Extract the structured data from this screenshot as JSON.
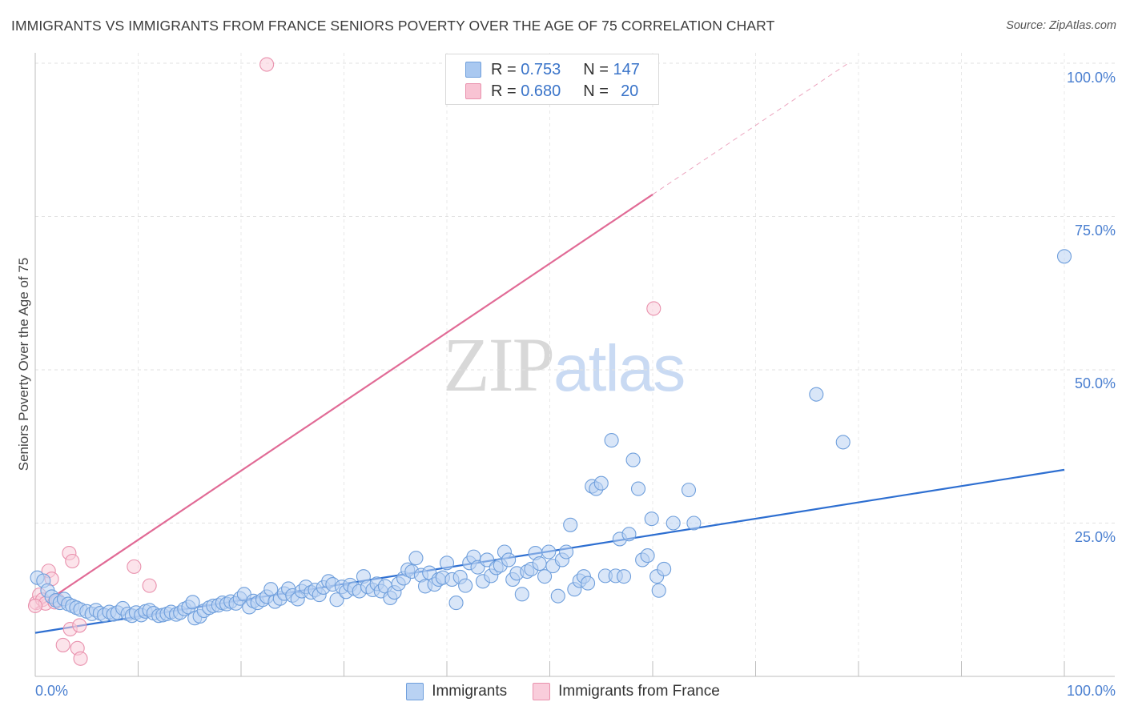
{
  "title": "IMMIGRANTS VS IMMIGRANTS FROM FRANCE SENIORS POVERTY OVER THE AGE OF 75 CORRELATION CHART",
  "source": "Source: ZipAtlas.com",
  "watermark": {
    "zip": "ZIP",
    "atlas": "atlas"
  },
  "legend": {
    "r_label": "R =",
    "n_label": "N =",
    "rows": [
      {
        "r": "0.753",
        "n": "147",
        "color": "#a9c8f0",
        "border": "#6f9fdc"
      },
      {
        "r": "0.680",
        "n": "20",
        "color": "#f8c3d3",
        "border": "#e991ad"
      }
    ]
  },
  "bottom_legend": [
    {
      "label": "Immigrants",
      "color": "#b9d2f3",
      "border": "#6f9fdc"
    },
    {
      "label": "Immigrants from France",
      "color": "#f9cddb",
      "border": "#e991ad"
    }
  ],
  "chart_data": {
    "type": "scatter",
    "title": "IMMIGRANTS VS IMMIGRANTS FROM FRANCE SENIORS POVERTY OVER THE AGE OF 75 CORRELATION CHART",
    "xlabel": "",
    "ylabel": "Seniors Poverty Over the Age of 75",
    "xlim": [
      0,
      100
    ],
    "ylim": [
      0,
      100
    ],
    "x_tick_labels": [
      "0.0%",
      "100.0%"
    ],
    "y_tick_labels": [
      "25.0%",
      "50.0%",
      "75.0%",
      "100.0%"
    ],
    "y_tick_values": [
      25,
      50,
      75,
      100
    ],
    "grid": true,
    "legend_position": "top-center",
    "series": [
      {
        "name": "Immigrants",
        "color": "#6f9fdc",
        "fill": "#b9d2f3",
        "trend": {
          "x0": 0,
          "y0": 7.1,
          "x1": 100,
          "y1": 33.7,
          "color": "#2e6fd1"
        },
        "points": [
          [
            0.2,
            16.1
          ],
          [
            0.8,
            15.6
          ],
          [
            1.2,
            14.0
          ],
          [
            1.6,
            13.0
          ],
          [
            2.0,
            12.4
          ],
          [
            2.4,
            12.0
          ],
          [
            2.8,
            12.6
          ],
          [
            3.2,
            11.8
          ],
          [
            3.6,
            11.5
          ],
          [
            4.0,
            11.2
          ],
          [
            4.4,
            10.9
          ],
          [
            5.0,
            10.6
          ],
          [
            5.5,
            10.2
          ],
          [
            5.9,
            10.8
          ],
          [
            6.3,
            10.3
          ],
          [
            6.7,
            10.0
          ],
          [
            7.2,
            10.5
          ],
          [
            7.6,
            10.1
          ],
          [
            8.0,
            10.4
          ],
          [
            8.5,
            11.1
          ],
          [
            9.0,
            10.2
          ],
          [
            9.4,
            9.9
          ],
          [
            9.8,
            10.4
          ],
          [
            10.3,
            10.0
          ],
          [
            10.7,
            10.6
          ],
          [
            11.1,
            10.8
          ],
          [
            11.5,
            10.3
          ],
          [
            12.0,
            9.9
          ],
          [
            12.4,
            10.0
          ],
          [
            12.8,
            10.2
          ],
          [
            13.2,
            10.5
          ],
          [
            13.7,
            10.1
          ],
          [
            14.1,
            10.4
          ],
          [
            14.5,
            11.0
          ],
          [
            14.9,
            11.3
          ],
          [
            15.3,
            12.1
          ],
          [
            15.5,
            9.5
          ],
          [
            16.0,
            9.8
          ],
          [
            16.4,
            10.7
          ],
          [
            16.9,
            11.2
          ],
          [
            17.3,
            11.5
          ],
          [
            17.8,
            11.6
          ],
          [
            18.2,
            12.0
          ],
          [
            18.6,
            11.8
          ],
          [
            19.0,
            12.2
          ],
          [
            19.5,
            11.9
          ],
          [
            19.9,
            12.7
          ],
          [
            20.3,
            13.4
          ],
          [
            20.8,
            11.3
          ],
          [
            21.2,
            12.3
          ],
          [
            21.6,
            12.0
          ],
          [
            22.1,
            12.5
          ],
          [
            22.5,
            13.0
          ],
          [
            22.9,
            14.2
          ],
          [
            23.3,
            12.2
          ],
          [
            23.8,
            12.7
          ],
          [
            24.2,
            13.5
          ],
          [
            24.6,
            14.3
          ],
          [
            25.0,
            13.2
          ],
          [
            25.5,
            12.6
          ],
          [
            25.9,
            13.9
          ],
          [
            26.3,
            14.6
          ],
          [
            26.8,
            13.7
          ],
          [
            27.2,
            14.1
          ],
          [
            27.6,
            13.3
          ],
          [
            28.0,
            14.5
          ],
          [
            28.5,
            15.5
          ],
          [
            28.9,
            15.0
          ],
          [
            29.3,
            12.5
          ],
          [
            29.8,
            14.6
          ],
          [
            30.2,
            13.8
          ],
          [
            30.6,
            14.9
          ],
          [
            31.0,
            14.3
          ],
          [
            31.5,
            13.9
          ],
          [
            31.9,
            16.3
          ],
          [
            32.3,
            14.6
          ],
          [
            32.8,
            14.1
          ],
          [
            33.2,
            15.1
          ],
          [
            33.6,
            13.9
          ],
          [
            34.0,
            14.7
          ],
          [
            34.5,
            12.8
          ],
          [
            34.9,
            13.7
          ],
          [
            35.3,
            15.1
          ],
          [
            35.8,
            16.0
          ],
          [
            36.2,
            17.4
          ],
          [
            36.6,
            17.1
          ],
          [
            37.0,
            19.3
          ],
          [
            37.5,
            16.5
          ],
          [
            37.9,
            14.7
          ],
          [
            38.3,
            16.9
          ],
          [
            38.8,
            15.0
          ],
          [
            39.2,
            15.8
          ],
          [
            39.6,
            16.1
          ],
          [
            40.0,
            18.5
          ],
          [
            40.5,
            15.8
          ],
          [
            40.9,
            12.0
          ],
          [
            41.3,
            16.2
          ],
          [
            41.8,
            14.8
          ],
          [
            42.2,
            18.5
          ],
          [
            42.6,
            19.5
          ],
          [
            43.0,
            17.8
          ],
          [
            43.5,
            15.5
          ],
          [
            43.9,
            19.0
          ],
          [
            44.3,
            16.4
          ],
          [
            44.8,
            17.7
          ],
          [
            45.2,
            18.1
          ],
          [
            45.6,
            20.3
          ],
          [
            46.0,
            19.0
          ],
          [
            46.4,
            15.8
          ],
          [
            46.8,
            16.8
          ],
          [
            47.3,
            13.4
          ],
          [
            47.8,
            17.1
          ],
          [
            48.2,
            17.5
          ],
          [
            48.6,
            20.1
          ],
          [
            49.0,
            18.4
          ],
          [
            49.5,
            16.3
          ],
          [
            49.9,
            20.3
          ],
          [
            50.3,
            18.0
          ],
          [
            50.8,
            13.1
          ],
          [
            51.2,
            19.0
          ],
          [
            51.6,
            20.3
          ],
          [
            52.0,
            24.7
          ],
          [
            52.4,
            14.2
          ],
          [
            52.9,
            15.6
          ],
          [
            53.3,
            16.3
          ],
          [
            53.7,
            15.2
          ],
          [
            54.1,
            31.0
          ],
          [
            54.5,
            30.6
          ],
          [
            55.0,
            31.5
          ],
          [
            55.4,
            16.4
          ],
          [
            56.0,
            38.5
          ],
          [
            56.4,
            16.4
          ],
          [
            56.8,
            22.4
          ],
          [
            57.2,
            16.3
          ],
          [
            57.7,
            23.2
          ],
          [
            58.1,
            35.3
          ],
          [
            58.6,
            30.6
          ],
          [
            59.0,
            19.0
          ],
          [
            59.5,
            19.7
          ],
          [
            59.9,
            25.7
          ],
          [
            60.4,
            16.3
          ],
          [
            60.6,
            14.0
          ],
          [
            61.1,
            17.5
          ],
          [
            62.0,
            25.0
          ],
          [
            63.5,
            30.4
          ],
          [
            64.0,
            25.0
          ],
          [
            75.9,
            46.0
          ],
          [
            78.5,
            38.2
          ],
          [
            100.0,
            68.5
          ]
        ]
      },
      {
        "name": "Immigrants from France",
        "color": "#e991ad",
        "fill": "#f9cddb",
        "trend": {
          "x0": 0,
          "y0": 11.0,
          "x1": 60,
          "y1": 78.6,
          "x_dash_end": 79,
          "y_dash_end": 100,
          "color": "#e16b96"
        },
        "points": [
          [
            0.1,
            12.0
          ],
          [
            0.4,
            13.3
          ],
          [
            0.7,
            12.5
          ],
          [
            1.0,
            11.9
          ],
          [
            1.3,
            17.2
          ],
          [
            1.6,
            15.9
          ],
          [
            1.9,
            12.1
          ],
          [
            2.2,
            12.4
          ],
          [
            2.7,
            5.1
          ],
          [
            3.3,
            20.1
          ],
          [
            3.4,
            7.7
          ],
          [
            3.6,
            18.8
          ],
          [
            4.1,
            4.6
          ],
          [
            4.3,
            8.3
          ],
          [
            4.4,
            2.9
          ],
          [
            9.6,
            17.9
          ],
          [
            11.1,
            14.8
          ],
          [
            22.5,
            99.8
          ],
          [
            60.1,
            60.0
          ],
          [
            0.0,
            11.5
          ]
        ]
      }
    ]
  }
}
